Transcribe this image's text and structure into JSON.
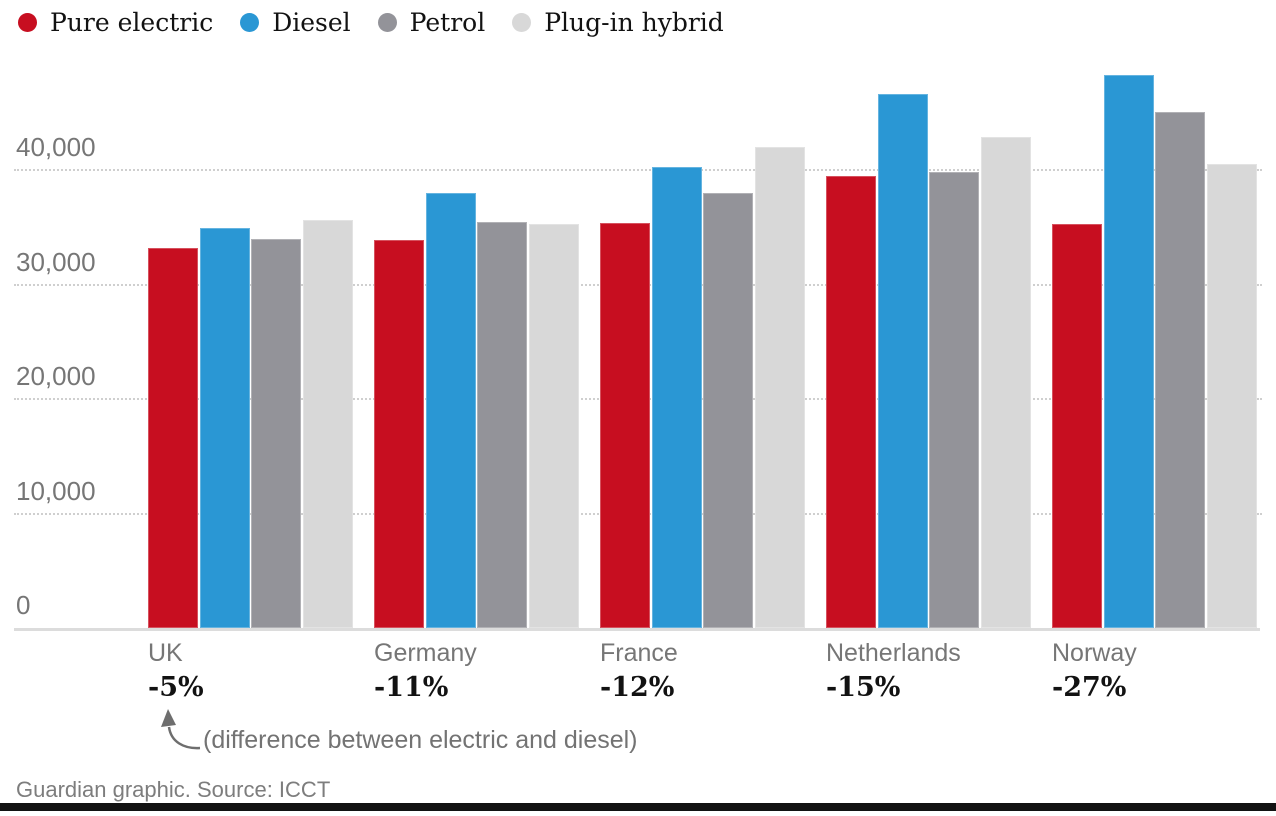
{
  "chart_data": {
    "type": "bar",
    "title": "",
    "categories": [
      "UK",
      "Germany",
      "France",
      "Netherlands",
      "Norway"
    ],
    "category_sublabels": [
      "-5%",
      "-11%",
      "-12%",
      "-15%",
      "-27%"
    ],
    "series": [
      {
        "name": "Pure electric",
        "color": "#c70e20",
        "values": [
          33200,
          33900,
          35400,
          39500,
          35300
        ]
      },
      {
        "name": "Diesel",
        "color": "#2a97d4",
        "values": [
          34900,
          38000,
          40300,
          46600,
          48300
        ]
      },
      {
        "name": "Petrol",
        "color": "#939399",
        "values": [
          34000,
          35500,
          38000,
          39800,
          45100
        ]
      },
      {
        "name": "Plug-in hybrid",
        "color": "#d8d8d8",
        "values": [
          35600,
          35300,
          42000,
          42900,
          40500
        ]
      }
    ],
    "yticks": [
      {
        "label": "0",
        "value": 0
      },
      {
        "label": "10,000",
        "value": 10000
      },
      {
        "label": "20,000",
        "value": 20000
      },
      {
        "label": "30,000",
        "value": 30000
      },
      {
        "label": "40,000",
        "value": 40000
      }
    ],
    "ylim": [
      0,
      50000
    ],
    "grid": "horizontal-dotted",
    "legend_position": "top-left",
    "annotation": "(difference between electric and diesel)"
  },
  "footer": {
    "credit": "Guardian graphic. Source: ICCT"
  },
  "colors": {
    "axis_label": "#767676",
    "gridline": "#cfcfcf",
    "baseline": "#dcdcdc",
    "text_dark": "#121212",
    "annotation": "#737373",
    "bottom_rule": "#121212"
  }
}
